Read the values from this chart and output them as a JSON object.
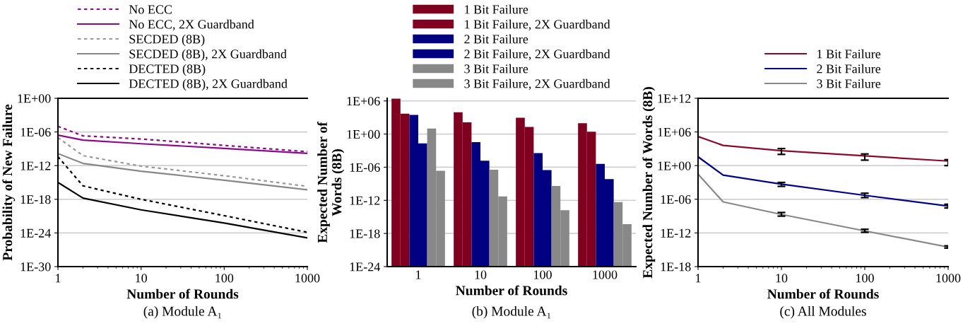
{
  "chart_data": [
    {
      "type": "line",
      "xlabel": "Number of Rounds",
      "ylabel": "Probability of New Failure",
      "log": "xy",
      "grid": "y",
      "legend": "top",
      "marker": "none",
      "annotations": [
        "(a) Module A₁"
      ],
      "xlim": [
        1,
        1000
      ],
      "xticks": [
        1,
        10,
        100,
        1000
      ],
      "ylim": [
        1e-30,
        1
      ],
      "yticks": [
        {
          "value": 1e-30,
          "label": "1E-30"
        },
        {
          "value": 1e-24,
          "label": "1E-24"
        },
        {
          "value": 1e-18,
          "label": "1E-18"
        },
        {
          "value": 1e-12,
          "label": "1E-12"
        },
        {
          "value": 1e-06,
          "label": "1E-06"
        },
        {
          "value": 1,
          "label": "1E+00"
        }
      ],
      "x": [
        1,
        2,
        10,
        100,
        1000
      ],
      "series": [
        {
          "name": "No ECC",
          "color": "#8b0a8b",
          "line_style": "dotted",
          "values": [
            1e-05,
            2e-07,
            5.6e-08,
            4e-09,
            3e-10
          ]
        },
        {
          "name": "No ECC, 2X Guardband",
          "color": "#8b0a8b",
          "line_style": "solid",
          "values": [
            2.7e-07,
            3.5e-08,
            8e-09,
            1.2e-09,
            1.5e-10
          ]
        },
        {
          "name": "SECDED (8B)",
          "color": "#999999",
          "line_style": "dotted",
          "values": [
            1e-07,
            6e-11,
            8e-13,
            1.6e-14,
            2e-16
          ]
        },
        {
          "name": "SECDED (8B), 2X Guardband",
          "color": "#888888",
          "line_style": "solid",
          "values": [
            1.4e-10,
            2.5e-12,
            1e-13,
            2.5e-15,
            5e-17
          ]
        },
        {
          "name": "DECTED (8B)",
          "color": "#000000",
          "line_style": "dotted",
          "values": [
            4e-11,
            2.5e-16,
            1e-18,
            1.2e-21,
            1.3e-24
          ]
        },
        {
          "name": "DECTED (8B), 2X Guardband",
          "color": "#000000",
          "line_style": "solid",
          "values": [
            1e-15,
            1.6e-18,
            1.3e-20,
            6e-23,
            1.3e-25
          ]
        }
      ]
    },
    {
      "type": "bar",
      "xlabel": "Number of Rounds",
      "ylabel": "Expected Number of\nWords (8B)",
      "log": "y",
      "grid": "y",
      "legend": "top",
      "annotations": [
        "(b) Module A₁"
      ],
      "categories": [
        "1",
        "10",
        "100",
        "1000"
      ],
      "ylim": [
        1e-24,
        3000000.0
      ],
      "yticks": [
        {
          "value": 1e-24,
          "label": "1E-24"
        },
        {
          "value": 1e-18,
          "label": "1E-18"
        },
        {
          "value": 1e-12,
          "label": "1E-12"
        },
        {
          "value": 1e-06,
          "label": "1E-06"
        },
        {
          "value": 1,
          "label": "1E+00"
        },
        {
          "value": 1000000.0,
          "label": "1E+06"
        }
      ],
      "series": [
        {
          "name": "1 Bit Failure",
          "color": "#800020",
          "values": [
            2600000.0,
            9000.0,
            900.0,
            90
          ]
        },
        {
          "name": "1 Bit Failure, 2X Guardband",
          "color": "#800020",
          "values": [
            5000.0,
            130.0,
            20,
            2.6
          ]
        },
        {
          "name": "2 Bit Failure",
          "color": "#000080",
          "values": [
            3000.0,
            0.034,
            0.00036,
            4e-06
          ]
        },
        {
          "name": "2 Bit Failure, 2X Guardband",
          "color": "#000080",
          "values": [
            0.02,
            1.5e-05,
            3e-07,
            7e-09
          ]
        },
        {
          "name": "3 Bit Failure",
          "color": "#888888",
          "values": [
            10,
            3.5e-07,
            4e-10,
            5e-13
          ]
        },
        {
          "name": "3 Bit Failure, 2X Guardband",
          "color": "#888888",
          "values": [
            2.3e-07,
            5e-12,
            1.6e-14,
            5e-17
          ]
        }
      ]
    },
    {
      "type": "line",
      "xlabel": "Number of Rounds",
      "ylabel": "Expected Number of Words (8B)",
      "log": "xy",
      "grid": "y",
      "legend": "top",
      "marker": "none",
      "line_style": "solid",
      "annotations": [
        "(c) All Modules"
      ],
      "xlim": [
        1,
        1000
      ],
      "xticks": [
        1,
        10,
        100,
        1000
      ],
      "ylim": [
        1e-18,
        1000000000000.0
      ],
      "yticks": [
        {
          "value": 1e-18,
          "label": "1E-18"
        },
        {
          "value": 1e-12,
          "label": "1E-12"
        },
        {
          "value": 1e-06,
          "label": "1E-06"
        },
        {
          "value": 1,
          "label": "1E+00"
        },
        {
          "value": 1000000.0,
          "label": "1E+06"
        },
        {
          "value": 1000000000000.0,
          "label": "1E+12"
        }
      ],
      "x": [
        1,
        2,
        10,
        100,
        1000
      ],
      "series": [
        {
          "name": "1 Bit Failure",
          "color": "#8b0a2a",
          "values": [
            150000.0,
            4000.0,
            460.0,
            54,
            6.5
          ],
          "errors": [
            null,
            null,
            [
              100.0,
              1100.0
            ],
            [
              9.5,
              120.0
            ],
            [
              1,
              11.5
            ]
          ]
        },
        {
          "name": "2 Bit Failure",
          "color": "#00008b",
          "values": [
            37,
            0.02,
            0.0005,
            5e-06,
            6e-08
          ],
          "errors": [
            null,
            null,
            [
              0.0002,
              0.001
            ],
            [
              2e-06,
              1.2e-05
            ],
            [
              2.8e-08,
              1.3e-07
            ]
          ]
        },
        {
          "name": "3 Bit Failure",
          "color": "#888888",
          "values": [
            0.03,
            3.4e-07,
            2e-09,
            2.3e-12,
            3e-15
          ],
          "errors": [
            null,
            null,
            [
              1e-09,
              4.4e-09
            ],
            [
              1.3e-12,
              4.5e-12
            ],
            [
              2e-15,
              5e-15
            ]
          ]
        }
      ]
    }
  ]
}
